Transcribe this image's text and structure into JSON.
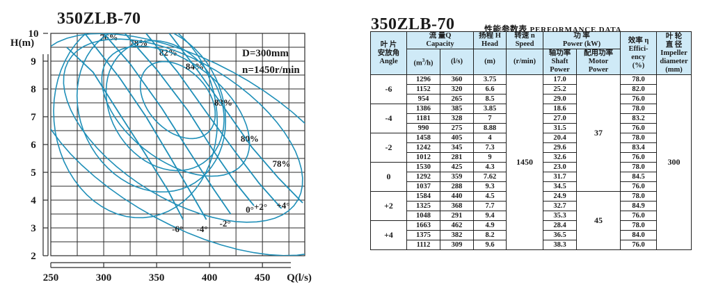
{
  "chart_data": {
    "type": "line",
    "title": "350ZLB-70",
    "xlabel": "Q(l/s)",
    "ylabel": "H(m)",
    "xlim": [
      250,
      490
    ],
    "ylim": [
      2,
      10
    ],
    "xticks": [
      250,
      300,
      350,
      400,
      450
    ],
    "yticks": [
      2,
      3,
      4,
      5,
      6,
      7,
      8,
      9,
      10
    ],
    "xtick_labels": [
      "250",
      "300",
      "350",
      "400",
      "450"
    ],
    "ytick_labels": [
      "2",
      "3",
      "4",
      "5",
      "6",
      "7",
      "8",
      "9",
      "10"
    ],
    "grid": true,
    "annotations": [
      "D=300mm",
      "n=1450r/min"
    ],
    "series": [
      {
        "name": "-6°",
        "points": [
          [
            265,
            9.5
          ],
          [
            290,
            8.6
          ],
          [
            315,
            7.1
          ],
          [
            337,
            5.8
          ],
          [
            360,
            4.4
          ],
          [
            375,
            3.3
          ]
        ]
      },
      {
        "name": "-4°",
        "points": [
          [
            282,
            10.0
          ],
          [
            315,
            8.4
          ],
          [
            340,
            7.0
          ],
          [
            362,
            5.6
          ],
          [
            385,
            4.1
          ],
          [
            397,
            3.3
          ]
        ]
      },
      {
        "name": "-2°",
        "points": [
          [
            300,
            10.0
          ],
          [
            325,
            8.9
          ],
          [
            355,
            7.3
          ],
          [
            380,
            5.8
          ],
          [
            402,
            4.5
          ],
          [
            420,
            3.5
          ]
        ]
      },
      {
        "name": "0°",
        "points": [
          [
            320,
            10.0
          ],
          [
            350,
            8.7
          ],
          [
            380,
            7.2
          ],
          [
            405,
            5.7
          ],
          [
            425,
            4.6
          ],
          [
            442,
            3.8
          ]
        ]
      },
      {
        "name": "+2°",
        "points": [
          [
            340,
            10.0
          ],
          [
            370,
            8.6
          ],
          [
            400,
            7.0
          ],
          [
            425,
            5.7
          ],
          [
            447,
            4.6
          ],
          [
            468,
            3.7
          ]
        ]
      },
      {
        "name": "+4°",
        "points": [
          [
            362,
            10.0
          ],
          [
            390,
            8.6
          ],
          [
            418,
            7.1
          ],
          [
            440,
            5.9
          ],
          [
            465,
            4.8
          ],
          [
            488,
            3.9
          ]
        ]
      }
    ],
    "efficiency_labels": [
      "76%",
      "78%",
      "82%",
      "84%",
      "83%",
      "80%",
      "78%"
    ],
    "colors": {
      "curve": "#1f8fb8",
      "grid": "#2a2a2a",
      "text": "#1a1a1a"
    }
  },
  "table": {
    "title": "350ZLB-70",
    "subtitle_cn": "性能参数表",
    "subtitle_en": "PERFORMANCE DATA",
    "header": {
      "angle_cn1": "叶 片",
      "angle_cn2": "安放角",
      "angle_en": "Angle",
      "capacity_cn": "流 量Q",
      "capacity_en": "Capacity",
      "unit_m3h": "(m",
      "unit_m3h_sup": "3",
      "unit_m3h_tail": "/h)",
      "unit_ls": "(l/s)",
      "head_cn": "扬程 H",
      "head_en": "Head",
      "unit_m": "(m)",
      "speed_cn": "转速 n",
      "speed_en": "Speed",
      "unit_rmin": "(r/min)",
      "power_cn": "功 率",
      "power_en": "Power (kW)",
      "shaft_cn": "轴功率",
      "shaft_en1": "Shaft",
      "shaft_en2": "Power",
      "motor_cn": "配用功率",
      "motor_en1": "Motor",
      "motor_en2": "Power",
      "eff_cn": "效率 η",
      "eff_en1": "Effici-",
      "eff_en2": "ency",
      "unit_pct": "(%)",
      "dia_cn1": "叶 轮",
      "dia_cn2": "直 径",
      "dia_en1": "Impeller",
      "dia_en2": "diameter",
      "unit_mm": "(mm)"
    },
    "groups": [
      {
        "angle": "-6",
        "rows": [
          {
            "m3h": "1296",
            "ls": "360",
            "head": "3.75",
            "shaft": "17.0",
            "eff": "78.0"
          },
          {
            "m3h": "1152",
            "ls": "320",
            "head": "6.6",
            "shaft": "25.2",
            "eff": "82.0"
          },
          {
            "m3h": "954",
            "ls": "265",
            "head": "8.5",
            "shaft": "29.0",
            "eff": "76.0"
          }
        ]
      },
      {
        "angle": "-4",
        "rows": [
          {
            "m3h": "1386",
            "ls": "385",
            "head": "3.85",
            "shaft": "18.6",
            "eff": "78.0"
          },
          {
            "m3h": "1181",
            "ls": "328",
            "head": "7",
            "shaft": "27.0",
            "eff": "83.2"
          },
          {
            "m3h": "990",
            "ls": "275",
            "head": "8.88",
            "shaft": "31.5",
            "eff": "76.0"
          }
        ]
      },
      {
        "angle": "-2",
        "rows": [
          {
            "m3h": "1458",
            "ls": "405",
            "head": "4",
            "shaft": "20.4",
            "eff": "78.0"
          },
          {
            "m3h": "1242",
            "ls": "345",
            "head": "7.3",
            "shaft": "29.6",
            "eff": "83.4"
          },
          {
            "m3h": "1012",
            "ls": "281",
            "head": "9",
            "shaft": "32.6",
            "eff": "76.0"
          }
        ]
      },
      {
        "angle": "0",
        "rows": [
          {
            "m3h": "1530",
            "ls": "425",
            "head": "4.3",
            "shaft": "23.0",
            "eff": "78.0"
          },
          {
            "m3h": "1292",
            "ls": "359",
            "head": "7.62",
            "shaft": "31.7",
            "eff": "84.5"
          },
          {
            "m3h": "1037",
            "ls": "288",
            "head": "9.3",
            "shaft": "34.5",
            "eff": "76.0"
          }
        ]
      },
      {
        "angle": "+2",
        "rows": [
          {
            "m3h": "1584",
            "ls": "440",
            "head": "4.5",
            "shaft": "24.9",
            "eff": "78.0"
          },
          {
            "m3h": "1325",
            "ls": "368",
            "head": "7.7",
            "shaft": "32.7",
            "eff": "84.9"
          },
          {
            "m3h": "1048",
            "ls": "291",
            "head": "9.4",
            "shaft": "35.3",
            "eff": "76.0"
          }
        ]
      },
      {
        "angle": "+4",
        "rows": [
          {
            "m3h": "1663",
            "ls": "462",
            "head": "4.9",
            "shaft": "28.4",
            "eff": "78.0"
          },
          {
            "m3h": "1375",
            "ls": "382",
            "head": "8.2",
            "shaft": "36.5",
            "eff": "84.0"
          },
          {
            "m3h": "1112",
            "ls": "309",
            "head": "9.6",
            "shaft": "38.3",
            "eff": "76.0"
          }
        ]
      }
    ],
    "speed": "1450",
    "motor_power_a": "37",
    "motor_power_b": "45",
    "impeller_diameter": "300"
  }
}
